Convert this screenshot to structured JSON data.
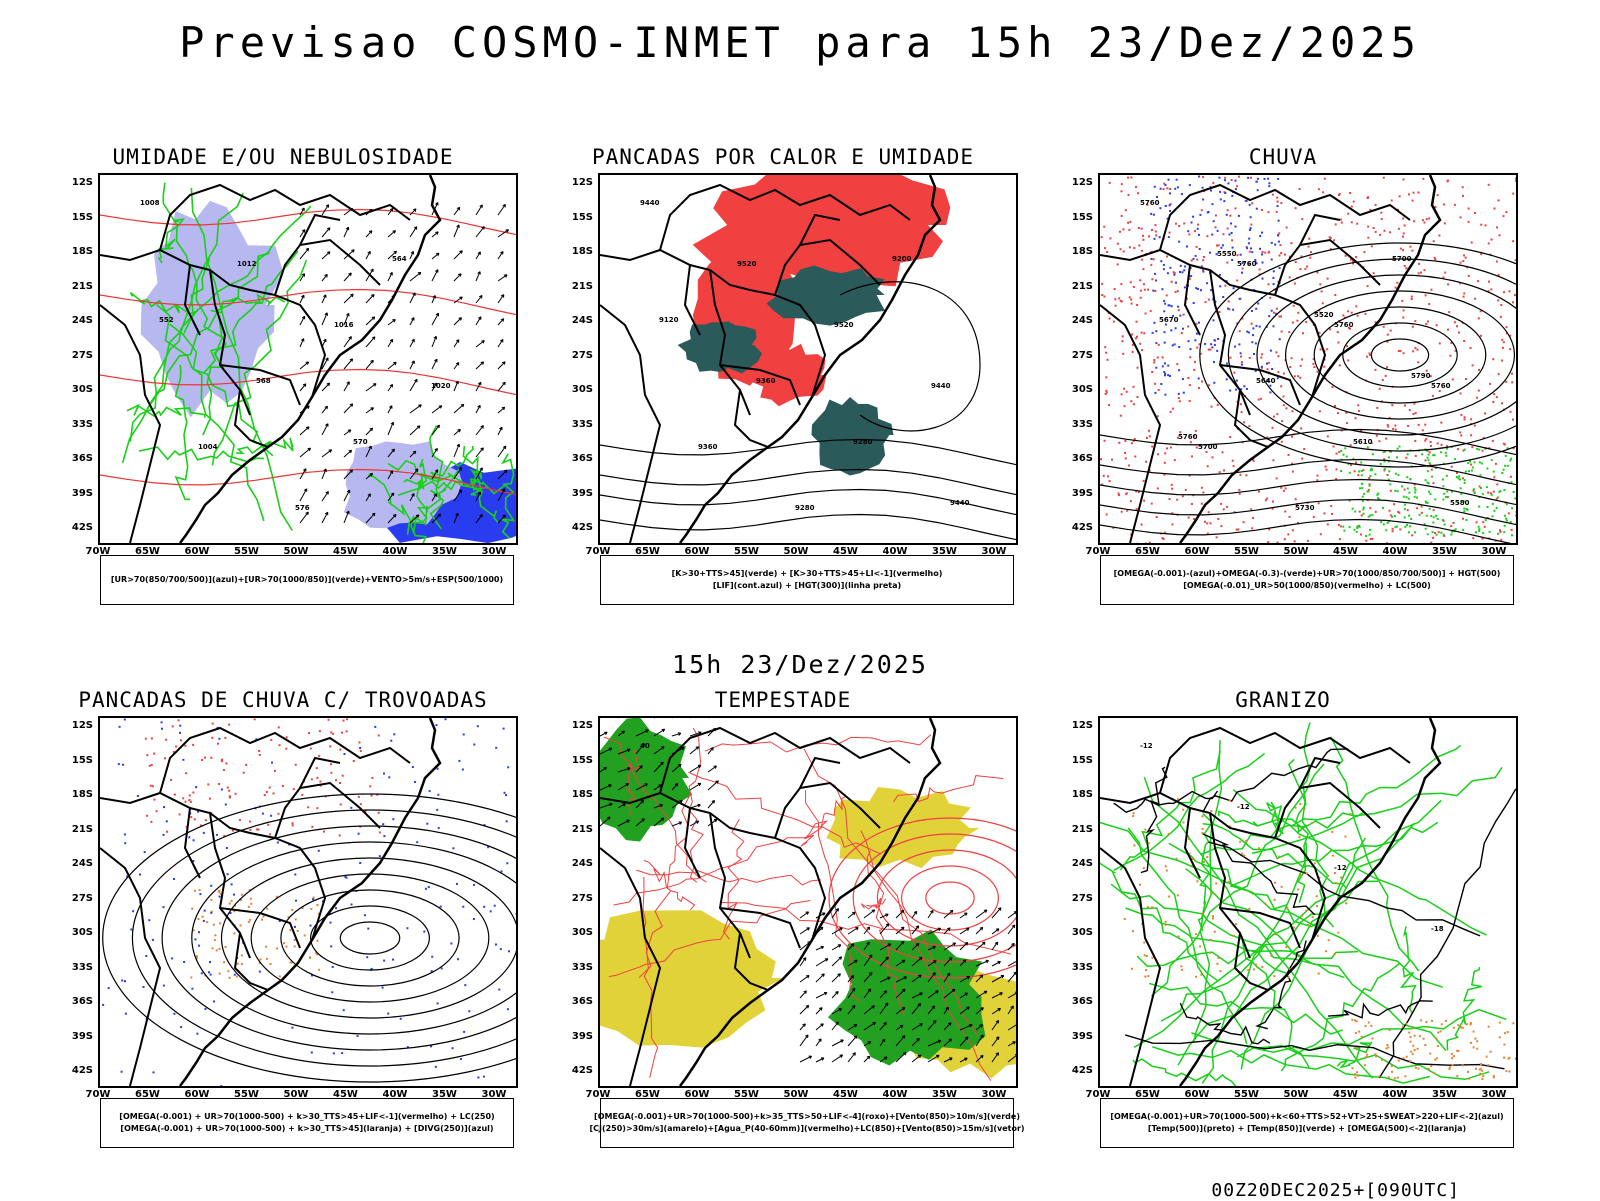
{
  "header": {
    "title": "Previsao COSMO-INMET  para 15h 23/Dez/2025"
  },
  "middle_title": "15h 23/Dez/2025",
  "footer": "00Z20DEC2025+[090UTC]",
  "axes": {
    "lat_labels": [
      "12S",
      "15S",
      "18S",
      "21S",
      "24S",
      "27S",
      "30S",
      "33S",
      "36S",
      "39S",
      "42S"
    ],
    "lon_labels": [
      "70W",
      "65W",
      "60W",
      "55W",
      "50W",
      "45W",
      "40W",
      "35W",
      "30W"
    ]
  },
  "panels": [
    {
      "title": "UMIDADE E/OU NEBULOSIDADE",
      "legend": [
        "[UR>70(850/700/500)](azul)+[UR>70(1000/850)](verde)+VENTO>5m/s+ESP(500/1000)"
      ],
      "contour_labels": [
        "1008",
        "1012",
        "1016",
        "1020",
        "1004",
        "576",
        "564",
        "552",
        "568",
        "570"
      ]
    },
    {
      "title": "PANCADAS POR CALOR E UMIDADE",
      "legend": [
        "[K>30+TTS>45](verde) + [K>30+TTS>45+LI<-1](vermelho)",
        "[LIF](cont.azul) + [HGT(300)](linha preta)"
      ],
      "contour_labels": [
        "9440",
        "9520",
        "9520",
        "9440",
        "9360",
        "9280",
        "9200",
        "9120",
        "9360",
        "9280",
        "9440"
      ]
    },
    {
      "title": "CHUVA",
      "legend": [
        "[OMEGA(-0.001)-(azul)+OMEGA(-0.3)-(verde)+UR>70(1000/850/700/500)] + HGT(500)",
        "[OMEGA(-0.01)_UR>50(1000/850)(vermelho) + LC(500)"
      ],
      "contour_labels": [
        "5760",
        "5760",
        "5760",
        "5760",
        "5700",
        "5730",
        "5700",
        "5670",
        "5640",
        "5610",
        "5580",
        "5550",
        "5520",
        "5790",
        "5760"
      ]
    },
    {
      "title": "PANCADAS DE CHUVA C/ TROVOADAS",
      "legend": [
        "[OMEGA(-0.001) + UR>70(1000-500) + k>30_TTS>45+LIF<-1](vermelho) + LC(250)",
        "[OMEGA(-0.001) + UR>70(1000-500) + k>30_TTS>45](laranja) + [DIVG(250)](azul)"
      ],
      "contour_labels": []
    },
    {
      "title": "TEMPESTADE",
      "legend": [
        "[OMEGA(-0.001)+UR>70(1000-500)+k>35_TTS>50+LIF<-4](roxo)+[Vento(850)>10m/s](verde)",
        "[CJ(250)>30m/s](amarelo)+[Agua_P(40-60mm)](vermelho)+LC(850)+[Vento(850)>15m/s](vetor)"
      ],
      "contour_labels": [
        "40"
      ]
    },
    {
      "title": "GRANIZO",
      "legend": [
        "[OMEGA(-0.001)+UR>70(1000-500)+k<60+TTS>52+VT>25+SWEAT>220+LIF<-2](azul)",
        "[Temp(500)](preto) + [Temp(850)](verde) + [OMEGA(500)<-2](laranja)"
      ],
      "contour_labels": [
        "-12",
        "-12",
        "-12",
        "-18"
      ]
    }
  ],
  "colors": {
    "blue": "#2a3cf0",
    "green": "#18d018",
    "red": "#f04040",
    "orange": "#e88030",
    "teal": "#2a5a5a",
    "yellow": "#e2d23a",
    "lavender": "#b8b8f0"
  }
}
